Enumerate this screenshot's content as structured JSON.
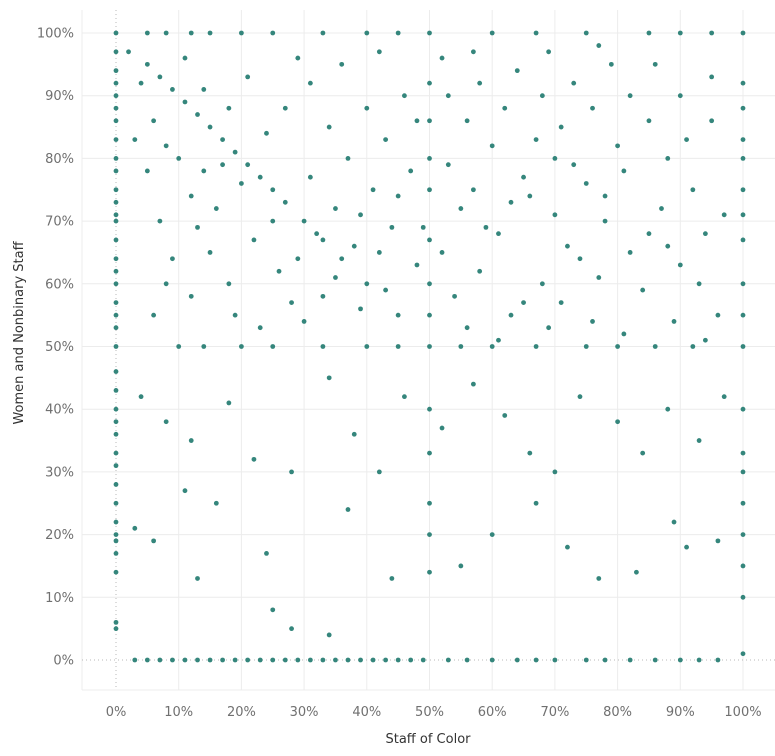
{
  "colors": {
    "point": "#2a8075",
    "grid": "#ececec",
    "zero_line": "#b8b8b8",
    "tick_text": "#707070",
    "axis_title": "#333333"
  },
  "chart_data": {
    "type": "scatter",
    "xlabel": "Staff of Color",
    "ylabel": "Women and Nonbinary Staff",
    "xlim": [
      0,
      1
    ],
    "ylim": [
      0,
      1
    ],
    "x_ticks": [
      "0%",
      "10%",
      "20%",
      "30%",
      "40%",
      "50%",
      "60%",
      "70%",
      "80%",
      "90%",
      "100%"
    ],
    "y_ticks": [
      "0%",
      "10%",
      "20%",
      "30%",
      "40%",
      "50%",
      "60%",
      "70%",
      "80%",
      "90%",
      "100%"
    ],
    "grid": true,
    "series": [
      {
        "points": [
          [
            0.0,
            0.05
          ],
          [
            0.0,
            0.06
          ],
          [
            0.0,
            0.14
          ],
          [
            0.0,
            0.17
          ],
          [
            0.0,
            0.19
          ],
          [
            0.0,
            0.2
          ],
          [
            0.0,
            0.22
          ],
          [
            0.0,
            0.25
          ],
          [
            0.0,
            0.28
          ],
          [
            0.0,
            0.31
          ],
          [
            0.0,
            0.33
          ],
          [
            0.0,
            0.36
          ],
          [
            0.0,
            0.38
          ],
          [
            0.0,
            0.4
          ],
          [
            0.0,
            0.43
          ],
          [
            0.0,
            0.46
          ],
          [
            0.0,
            0.5
          ],
          [
            0.0,
            0.53
          ],
          [
            0.0,
            0.55
          ],
          [
            0.0,
            0.57
          ],
          [
            0.0,
            0.6
          ],
          [
            0.0,
            0.62
          ],
          [
            0.0,
            0.64
          ],
          [
            0.0,
            0.67
          ],
          [
            0.0,
            0.7
          ],
          [
            0.0,
            0.71
          ],
          [
            0.0,
            0.73
          ],
          [
            0.0,
            0.75
          ],
          [
            0.0,
            0.78
          ],
          [
            0.0,
            0.8
          ],
          [
            0.0,
            0.83
          ],
          [
            0.0,
            0.86
          ],
          [
            0.0,
            0.88
          ],
          [
            0.0,
            0.9
          ],
          [
            0.0,
            0.92
          ],
          [
            0.0,
            0.94
          ],
          [
            0.0,
            0.97
          ],
          [
            0.0,
            1.0
          ],
          [
            1.0,
            0.01
          ],
          [
            1.0,
            0.1
          ],
          [
            1.0,
            0.15
          ],
          [
            1.0,
            0.2
          ],
          [
            1.0,
            0.25
          ],
          [
            1.0,
            0.3
          ],
          [
            1.0,
            0.33
          ],
          [
            1.0,
            0.4
          ],
          [
            1.0,
            0.5
          ],
          [
            1.0,
            0.55
          ],
          [
            1.0,
            0.6
          ],
          [
            1.0,
            0.67
          ],
          [
            1.0,
            0.71
          ],
          [
            1.0,
            0.75
          ],
          [
            1.0,
            0.8
          ],
          [
            1.0,
            0.83
          ],
          [
            1.0,
            0.88
          ],
          [
            1.0,
            0.92
          ],
          [
            1.0,
            1.0
          ],
          [
            0.5,
            0.14
          ],
          [
            0.5,
            0.2
          ],
          [
            0.5,
            0.25
          ],
          [
            0.5,
            0.33
          ],
          [
            0.5,
            0.4
          ],
          [
            0.5,
            0.5
          ],
          [
            0.5,
            0.6
          ],
          [
            0.5,
            0.67
          ],
          [
            0.5,
            0.75
          ],
          [
            0.5,
            0.8
          ],
          [
            0.5,
            0.86
          ],
          [
            0.5,
            0.92
          ],
          [
            0.5,
            1.0
          ],
          [
            0.03,
            0.0
          ],
          [
            0.05,
            0.0
          ],
          [
            0.07,
            0.0
          ],
          [
            0.09,
            0.0
          ],
          [
            0.11,
            0.0
          ],
          [
            0.13,
            0.0
          ],
          [
            0.15,
            0.0
          ],
          [
            0.17,
            0.0
          ],
          [
            0.19,
            0.0
          ],
          [
            0.21,
            0.0
          ],
          [
            0.23,
            0.0
          ],
          [
            0.25,
            0.0
          ],
          [
            0.27,
            0.0
          ],
          [
            0.29,
            0.0
          ],
          [
            0.31,
            0.0
          ],
          [
            0.33,
            0.0
          ],
          [
            0.35,
            0.0
          ],
          [
            0.37,
            0.0
          ],
          [
            0.39,
            0.0
          ],
          [
            0.41,
            0.0
          ],
          [
            0.43,
            0.0
          ],
          [
            0.45,
            0.0
          ],
          [
            0.47,
            0.0
          ],
          [
            0.49,
            0.0
          ],
          [
            0.53,
            0.0
          ],
          [
            0.56,
            0.0
          ],
          [
            0.6,
            0.0
          ],
          [
            0.64,
            0.0
          ],
          [
            0.67,
            0.0
          ],
          [
            0.7,
            0.0
          ],
          [
            0.75,
            0.0
          ],
          [
            0.78,
            0.0
          ],
          [
            0.82,
            0.0
          ],
          [
            0.86,
            0.0
          ],
          [
            0.9,
            0.0
          ],
          [
            0.93,
            0.0
          ],
          [
            0.96,
            0.0
          ],
          [
            0.05,
            1.0
          ],
          [
            0.08,
            1.0
          ],
          [
            0.12,
            1.0
          ],
          [
            0.15,
            1.0
          ],
          [
            0.2,
            1.0
          ],
          [
            0.25,
            1.0
          ],
          [
            0.33,
            1.0
          ],
          [
            0.4,
            1.0
          ],
          [
            0.45,
            1.0
          ],
          [
            0.6,
            1.0
          ],
          [
            0.67,
            1.0
          ],
          [
            0.75,
            1.0
          ],
          [
            0.85,
            1.0
          ],
          [
            0.9,
            1.0
          ],
          [
            0.95,
            1.0
          ],
          [
            0.1,
            0.5
          ],
          [
            0.14,
            0.5
          ],
          [
            0.2,
            0.5
          ],
          [
            0.25,
            0.5
          ],
          [
            0.33,
            0.5
          ],
          [
            0.4,
            0.5
          ],
          [
            0.45,
            0.5
          ],
          [
            0.55,
            0.5
          ],
          [
            0.6,
            0.5
          ],
          [
            0.67,
            0.5
          ],
          [
            0.75,
            0.5
          ],
          [
            0.8,
            0.5
          ],
          [
            0.86,
            0.5
          ],
          [
            0.92,
            0.5
          ],
          [
            0.05,
            0.95
          ],
          [
            0.07,
            0.93
          ],
          [
            0.09,
            0.91
          ],
          [
            0.11,
            0.89
          ],
          [
            0.13,
            0.87
          ],
          [
            0.15,
            0.85
          ],
          [
            0.17,
            0.83
          ],
          [
            0.19,
            0.81
          ],
          [
            0.21,
            0.79
          ],
          [
            0.23,
            0.77
          ],
          [
            0.25,
            0.75
          ],
          [
            0.27,
            0.73
          ],
          [
            0.3,
            0.7
          ],
          [
            0.33,
            0.67
          ],
          [
            0.36,
            0.64
          ],
          [
            0.4,
            0.6
          ],
          [
            0.45,
            0.55
          ],
          [
            0.04,
            0.92
          ],
          [
            0.06,
            0.86
          ],
          [
            0.08,
            0.82
          ],
          [
            0.1,
            0.8
          ],
          [
            0.14,
            0.78
          ],
          [
            0.12,
            0.74
          ],
          [
            0.6,
            0.82
          ],
          [
            0.65,
            0.77
          ],
          [
            0.7,
            0.8
          ],
          [
            0.75,
            0.76
          ],
          [
            0.8,
            0.82
          ],
          [
            0.85,
            0.86
          ],
          [
            0.9,
            0.9
          ],
          [
            0.95,
            0.93
          ],
          [
            0.72,
            0.66
          ],
          [
            0.78,
            0.7
          ],
          [
            0.55,
            0.72
          ],
          [
            0.04,
            0.42
          ],
          [
            0.08,
            0.38
          ],
          [
            0.12,
            0.35
          ],
          [
            0.18,
            0.41
          ],
          [
            0.22,
            0.32
          ],
          [
            0.28,
            0.3
          ],
          [
            0.34,
            0.45
          ],
          [
            0.38,
            0.36
          ],
          [
            0.42,
            0.3
          ],
          [
            0.46,
            0.42
          ],
          [
            0.52,
            0.37
          ],
          [
            0.57,
            0.44
          ],
          [
            0.62,
            0.39
          ],
          [
            0.66,
            0.33
          ],
          [
            0.7,
            0.3
          ],
          [
            0.74,
            0.42
          ],
          [
            0.8,
            0.38
          ],
          [
            0.84,
            0.33
          ],
          [
            0.88,
            0.4
          ],
          [
            0.93,
            0.35
          ],
          [
            0.97,
            0.42
          ],
          [
            0.03,
            0.21
          ],
          [
            0.06,
            0.19
          ],
          [
            0.11,
            0.27
          ],
          [
            0.13,
            0.13
          ],
          [
            0.16,
            0.25
          ],
          [
            0.24,
            0.17
          ],
          [
            0.25,
            0.08
          ],
          [
            0.28,
            0.05
          ],
          [
            0.34,
            0.04
          ],
          [
            0.37,
            0.24
          ],
          [
            0.44,
            0.13
          ],
          [
            0.55,
            0.15
          ],
          [
            0.6,
            0.2
          ],
          [
            0.67,
            0.25
          ],
          [
            0.72,
            0.18
          ],
          [
            0.77,
            0.13
          ],
          [
            0.83,
            0.14
          ],
          [
            0.89,
            0.22
          ],
          [
            0.91,
            0.18
          ],
          [
            0.96,
            0.19
          ],
          [
            0.15,
            0.65
          ],
          [
            0.18,
            0.6
          ],
          [
            0.22,
            0.67
          ],
          [
            0.26,
            0.62
          ],
          [
            0.28,
            0.57
          ],
          [
            0.32,
            0.68
          ],
          [
            0.35,
            0.72
          ],
          [
            0.38,
            0.66
          ],
          [
            0.41,
            0.75
          ],
          [
            0.44,
            0.69
          ],
          [
            0.47,
            0.78
          ],
          [
            0.48,
            0.63
          ],
          [
            0.52,
            0.65
          ],
          [
            0.54,
            0.58
          ],
          [
            0.58,
            0.62
          ],
          [
            0.61,
            0.68
          ],
          [
            0.63,
            0.55
          ],
          [
            0.66,
            0.74
          ],
          [
            0.68,
            0.6
          ],
          [
            0.71,
            0.57
          ],
          [
            0.74,
            0.64
          ],
          [
            0.77,
            0.61
          ],
          [
            0.82,
            0.65
          ],
          [
            0.84,
            0.59
          ],
          [
            0.87,
            0.72
          ],
          [
            0.9,
            0.63
          ],
          [
            0.93,
            0.6
          ],
          [
            0.96,
            0.55
          ],
          [
            0.12,
            0.58
          ],
          [
            0.09,
            0.64
          ],
          [
            0.07,
            0.7
          ],
          [
            0.16,
            0.72
          ],
          [
            0.2,
            0.76
          ],
          [
            0.24,
            0.84
          ],
          [
            0.27,
            0.88
          ],
          [
            0.31,
            0.92
          ],
          [
            0.34,
            0.85
          ],
          [
            0.37,
            0.8
          ],
          [
            0.4,
            0.88
          ],
          [
            0.43,
            0.83
          ],
          [
            0.46,
            0.9
          ],
          [
            0.48,
            0.86
          ],
          [
            0.53,
            0.9
          ],
          [
            0.56,
            0.86
          ],
          [
            0.58,
            0.92
          ],
          [
            0.62,
            0.88
          ],
          [
            0.64,
            0.94
          ],
          [
            0.68,
            0.9
          ],
          [
            0.71,
            0.85
          ],
          [
            0.73,
            0.92
          ],
          [
            0.76,
            0.88
          ],
          [
            0.79,
            0.95
          ],
          [
            0.82,
            0.9
          ],
          [
            0.86,
            0.95
          ],
          [
            0.88,
            0.8
          ],
          [
            0.92,
            0.75
          ],
          [
            0.94,
            0.68
          ],
          [
            0.97,
            0.71
          ],
          [
            0.18,
            0.88
          ],
          [
            0.21,
            0.93
          ],
          [
            0.14,
            0.91
          ],
          [
            0.11,
            0.96
          ],
          [
            0.29,
            0.96
          ],
          [
            0.36,
            0.95
          ],
          [
            0.42,
            0.97
          ],
          [
            0.52,
            0.96
          ],
          [
            0.57,
            0.97
          ],
          [
            0.69,
            0.97
          ],
          [
            0.77,
            0.98
          ],
          [
            0.19,
            0.55
          ],
          [
            0.23,
            0.53
          ],
          [
            0.3,
            0.54
          ],
          [
            0.33,
            0.58
          ],
          [
            0.39,
            0.56
          ],
          [
            0.43,
            0.59
          ],
          [
            0.5,
            0.55
          ],
          [
            0.56,
            0.53
          ],
          [
            0.61,
            0.51
          ],
          [
            0.65,
            0.57
          ],
          [
            0.69,
            0.53
          ],
          [
            0.76,
            0.54
          ],
          [
            0.81,
            0.52
          ],
          [
            0.89,
            0.54
          ],
          [
            0.94,
            0.51
          ],
          [
            0.06,
            0.55
          ],
          [
            0.08,
            0.6
          ],
          [
            0.03,
            0.83
          ],
          [
            0.05,
            0.78
          ],
          [
            0.02,
            0.97
          ],
          [
            0.13,
            0.69
          ],
          [
            0.17,
            0.79
          ],
          [
            0.25,
            0.7
          ],
          [
            0.29,
            0.64
          ],
          [
            0.31,
            0.77
          ],
          [
            0.35,
            0.61
          ],
          [
            0.39,
            0.71
          ],
          [
            0.42,
            0.65
          ],
          [
            0.45,
            0.74
          ],
          [
            0.49,
            0.69
          ],
          [
            0.53,
            0.79
          ],
          [
            0.57,
            0.75
          ],
          [
            0.59,
            0.69
          ],
          [
            0.63,
            0.73
          ],
          [
            0.67,
            0.83
          ],
          [
            0.7,
            0.71
          ],
          [
            0.73,
            0.79
          ],
          [
            0.78,
            0.74
          ],
          [
            0.81,
            0.78
          ],
          [
            0.85,
            0.68
          ],
          [
            0.88,
            0.66
          ],
          [
            0.91,
            0.83
          ],
          [
            0.95,
            0.86
          ]
        ]
      }
    ]
  }
}
